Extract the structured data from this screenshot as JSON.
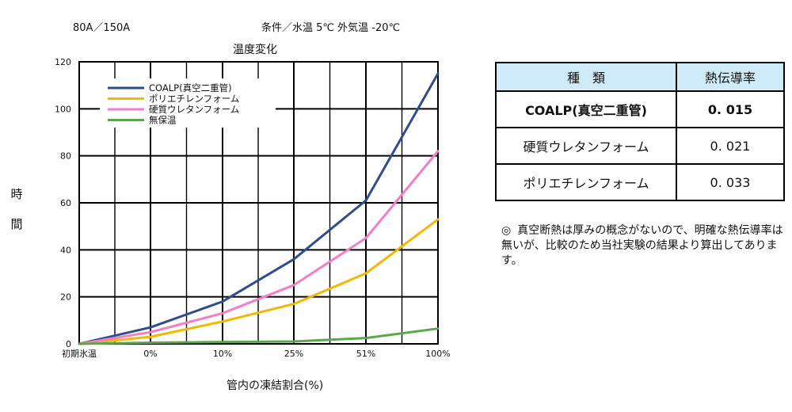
{
  "header": {
    "left": "80A／150A",
    "right": "条件／水温  5℃  外気温  -20℃"
  },
  "chart_data": {
    "type": "line",
    "title": "温度変化",
    "xlabel": "管内の凍結割合(%)",
    "ylabel": "時間",
    "categories": [
      "初期氷温",
      "0%",
      "10%",
      "25%",
      "51%",
      "100%"
    ],
    "ylim": [
      0,
      120
    ],
    "yticks": [
      0,
      20,
      40,
      60,
      80,
      100,
      120
    ],
    "grid": true,
    "legend_position": "top-left",
    "series": [
      {
        "name": "COALP(真空二重管)",
        "color": "#2e4d8e",
        "values": [
          0,
          7,
          18,
          36,
          61,
          115
        ]
      },
      {
        "name": "ポリエチレンフォーム",
        "color": "#f5b800",
        "values": [
          0,
          3,
          9.5,
          17,
          30,
          53
        ]
      },
      {
        "name": "硬質ウレタンフォーム",
        "color": "#f77cc8",
        "values": [
          0,
          5,
          13,
          25,
          45,
          82
        ]
      },
      {
        "name": "無保温",
        "color": "#5ba84a",
        "values": [
          0,
          0.5,
          0.8,
          1,
          2.5,
          6.5
        ]
      }
    ]
  },
  "table": {
    "headers": [
      "種　類",
      "熱伝導率"
    ],
    "rows": [
      {
        "kind": "COALP(真空二重管)",
        "value": "0. 015"
      },
      {
        "kind": "硬質ウレタンフォーム",
        "value": "0. 021"
      },
      {
        "kind": "ポリエチレンフォーム",
        "value": "0. 033"
      }
    ]
  },
  "note": {
    "mark": "◎",
    "text": "真空断熱は厚みの概念がないので、明確な熱伝導率は無いが、比較のため当社実験の結果より算出してあります。"
  }
}
